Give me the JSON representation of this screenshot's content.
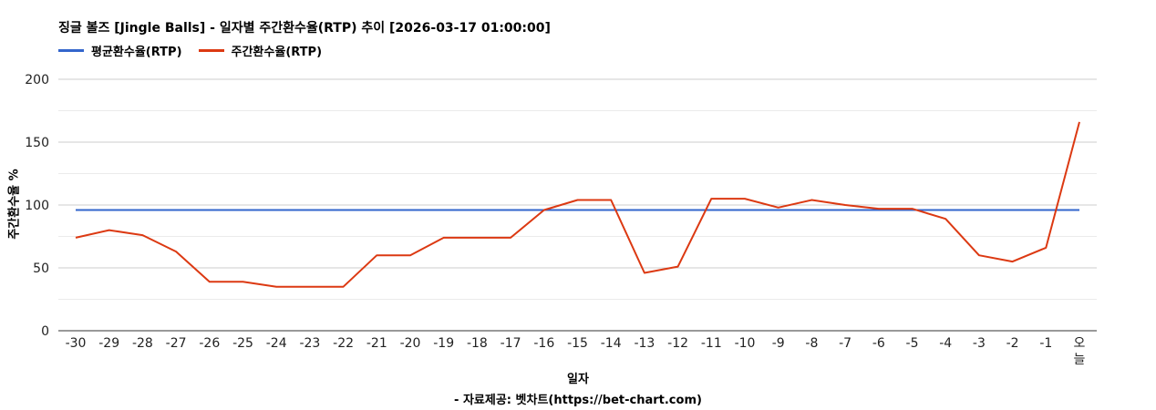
{
  "chart_data": {
    "type": "line",
    "title": "징글 볼즈 [Jingle Balls] - 일자별 주간환수율(RTP) 추이 [2026-03-17 01:00:00]",
    "xlabel": "일자",
    "ylabel": "주간환수율 %",
    "source": "- 자료제공: 벳차트(https://bet-chart.com)",
    "categories": [
      "-30",
      "-29",
      "-28",
      "-27",
      "-26",
      "-25",
      "-24",
      "-23",
      "-22",
      "-21",
      "-20",
      "-19",
      "-18",
      "-17",
      "-16",
      "-15",
      "-14",
      "-13",
      "-12",
      "-11",
      "-10",
      "-9",
      "-8",
      "-7",
      "-6",
      "-5",
      "-4",
      "-3",
      "-2",
      "-1",
      "오늘"
    ],
    "ylim": [
      0,
      200
    ],
    "yticks": [
      0,
      50,
      100,
      150,
      200
    ],
    "grid": true,
    "legend_position": "top-left",
    "series": [
      {
        "name": "평균환수율(RTP)",
        "color": "#3366cc",
        "values": [
          96,
          96,
          96,
          96,
          96,
          96,
          96,
          96,
          96,
          96,
          96,
          96,
          96,
          96,
          96,
          96,
          96,
          96,
          96,
          96,
          96,
          96,
          96,
          96,
          96,
          96,
          96,
          96,
          96,
          96,
          96
        ]
      },
      {
        "name": "주간환수율(RTP)",
        "color": "#dc3912",
        "values": [
          74,
          80,
          76,
          63,
          39,
          39,
          35,
          35,
          35,
          60,
          60,
          74,
          74,
          74,
          96,
          104,
          104,
          46,
          51,
          105,
          105,
          98,
          104,
          100,
          97,
          97,
          89,
          60,
          55,
          66,
          166
        ]
      }
    ]
  }
}
